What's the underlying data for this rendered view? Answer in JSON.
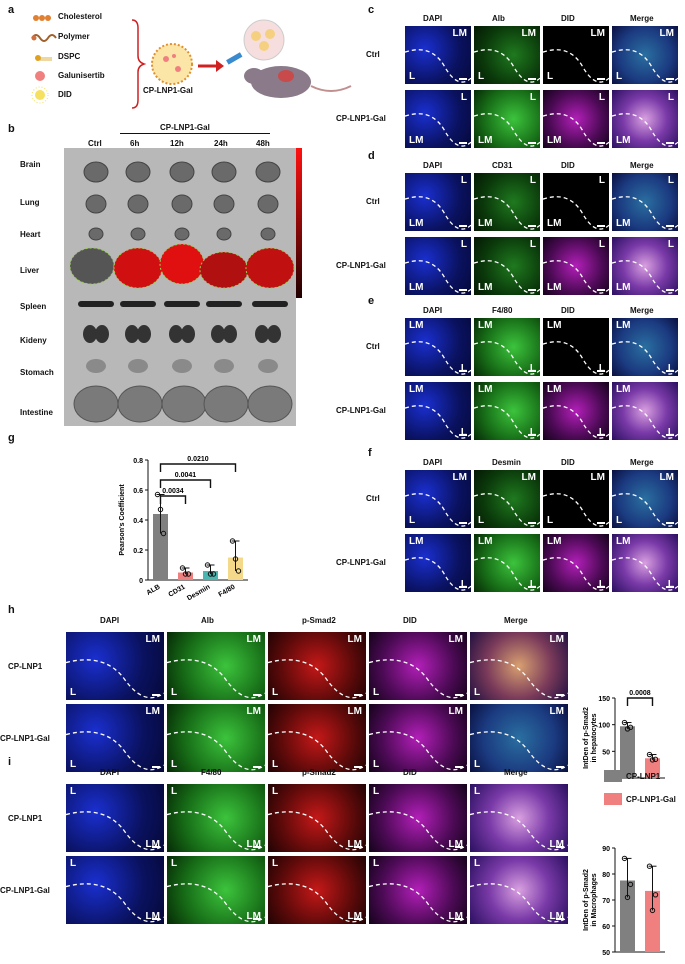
{
  "panels": {
    "a": "a",
    "b": "b",
    "c": "c",
    "d": "d",
    "e": "e",
    "f": "f",
    "g": "g",
    "h": "h",
    "i": "i"
  },
  "panel_a": {
    "legend": [
      "Cholesterol",
      "Polymer",
      "DSPC",
      "Galunisertib",
      "DID"
    ],
    "nanoparticle_label": "CP-LNP1-Gal"
  },
  "panel_b": {
    "group_header": "CP-LNP1-Gal",
    "columns": [
      "Ctrl",
      "6h",
      "12h",
      "24h",
      "48h"
    ],
    "rows": [
      "Brain",
      "Lung",
      "Heart",
      "Liver",
      "Spleen",
      "Kideny",
      "Stomach",
      "Intestine"
    ]
  },
  "fluor_headers_cd": {
    "c": [
      "DAPI",
      "Alb",
      "DID",
      "Merge"
    ],
    "d": [
      "DAPI",
      "CD31",
      "DID",
      "Merge"
    ],
    "e": [
      "DAPI",
      "F4/80",
      "DID",
      "Merge"
    ],
    "f": [
      "DAPI",
      "Desmin",
      "DID",
      "Merge"
    ]
  },
  "row_labels": {
    "ctrl": "Ctrl",
    "gal": "CP-LNP1-Gal",
    "lnp1": "CP-LNP1"
  },
  "tissue_marks": {
    "lm": "LM",
    "l": "L"
  },
  "panel_h_headers": [
    "DAPI",
    "Alb",
    "p-Smad2",
    "DID",
    "Merge"
  ],
  "panel_i_headers": [
    "DAPI",
    "F4/80",
    "p-Smad2",
    "DID",
    "Merge"
  ],
  "legend_hi": [
    {
      "name": "CP-LNP1",
      "color": "#808080"
    },
    {
      "name": "CP-LNP1-Gal",
      "color": "#f08080"
    }
  ],
  "colors": {
    "gray": "#808080",
    "pink": "#f08080",
    "teal": "#4bb5b0",
    "yellow": "#f5d98a"
  },
  "chart_data": [
    {
      "type": "bar",
      "ylabel": "Pearson's Coefficient",
      "categories": [
        "ALB",
        "CD31",
        "Desmin",
        "F4/80"
      ],
      "values": [
        0.44,
        0.05,
        0.06,
        0.15
      ],
      "points": [
        [
          0.57,
          0.47,
          0.31
        ],
        [
          0.08,
          0.04,
          0.04
        ],
        [
          0.1,
          0.04,
          0.04
        ],
        [
          0.26,
          0.14,
          0.06
        ]
      ],
      "ylim": [
        0,
        0.8
      ],
      "yticks": [
        0.0,
        0.2,
        0.4,
        0.6,
        0.8
      ],
      "pvalues": [
        "0.0034",
        "0.0041",
        "0.0210"
      ]
    },
    {
      "type": "bar",
      "ylabel": "IntDen of p-Smad2 in hepatocytes",
      "categories": [
        "CP-LNP1",
        "CP-LNP1-Gal"
      ],
      "values": [
        97,
        37
      ],
      "points": [
        [
          104,
          92,
          95
        ],
        [
          44,
          34,
          35
        ]
      ],
      "ylim": [
        0,
        150
      ],
      "yticks": [
        0,
        50,
        100,
        150
      ],
      "pvalues": [
        "0.0008"
      ]
    },
    {
      "type": "bar",
      "ylabel": "IntDen of p-Smad2 in Macrophages",
      "categories": [
        "CP-LNP1",
        "CP-LNP1-Gal"
      ],
      "values": [
        77.5,
        73.5
      ],
      "points": [
        [
          86,
          71,
          76
        ],
        [
          83,
          66,
          72
        ]
      ],
      "ylim": [
        50,
        90
      ],
      "yticks": [
        50,
        60,
        70,
        80,
        90
      ]
    }
  ]
}
